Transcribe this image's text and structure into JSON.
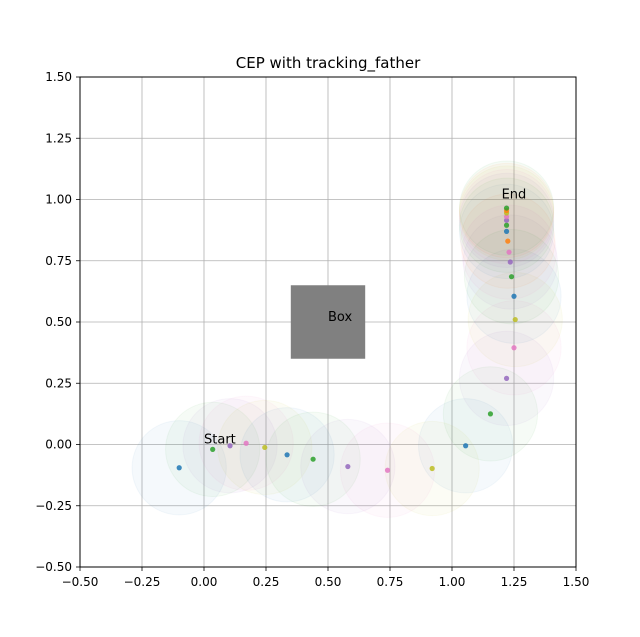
{
  "chart_data": {
    "type": "scatter",
    "title": "CEP with tracking_father",
    "xlabel": "",
    "ylabel": "",
    "xlim": [
      -0.5,
      1.5
    ],
    "ylim": [
      -0.5,
      1.5
    ],
    "grid": true,
    "x_ticks": [
      -0.5,
      -0.25,
      0.0,
      0.25,
      0.5,
      0.75,
      1.0,
      1.25,
      1.5
    ],
    "y_ticks": [
      -0.5,
      -0.25,
      0.0,
      0.25,
      0.5,
      0.75,
      1.0,
      1.25,
      1.5
    ],
    "x_tick_labels": [
      "−0.50",
      "−0.25",
      "0.00",
      "0.25",
      "0.50",
      "0.75",
      "1.00",
      "1.25",
      "1.50"
    ],
    "y_tick_labels": [
      "−0.50",
      "−0.25",
      "0.00",
      "0.25",
      "0.50",
      "0.75",
      "1.00",
      "1.25",
      "1.50"
    ],
    "cep_radius": 0.19,
    "box": {
      "x0": 0.35,
      "y0": 0.35,
      "x1": 0.65,
      "y1": 0.65,
      "color": "#808080"
    },
    "annotations": [
      {
        "text": "Start",
        "x": 0.0,
        "y": 0.0
      },
      {
        "text": "Box",
        "x": 0.5,
        "y": 0.5
      },
      {
        "text": "End",
        "x": 1.2,
        "y": 1.0
      }
    ],
    "points": [
      {
        "x": -0.1,
        "y": -0.095,
        "color": "#1f77b4"
      },
      {
        "x": 0.035,
        "y": -0.02,
        "color": "#2ca02c"
      },
      {
        "x": 0.105,
        "y": -0.005,
        "color": "#9467bd"
      },
      {
        "x": 0.17,
        "y": 0.005,
        "color": "#e377c2"
      },
      {
        "x": 0.245,
        "y": -0.012,
        "color": "#bcbd22"
      },
      {
        "x": 0.335,
        "y": -0.042,
        "color": "#1f77b4"
      },
      {
        "x": 0.44,
        "y": -0.06,
        "color": "#2ca02c"
      },
      {
        "x": 0.58,
        "y": -0.09,
        "color": "#9467bd"
      },
      {
        "x": 0.74,
        "y": -0.105,
        "color": "#e377c2"
      },
      {
        "x": 0.92,
        "y": -0.098,
        "color": "#bcbd22"
      },
      {
        "x": 1.055,
        "y": -0.005,
        "color": "#1f77b4"
      },
      {
        "x": 1.155,
        "y": 0.125,
        "color": "#2ca02c"
      },
      {
        "x": 1.22,
        "y": 0.27,
        "color": "#9467bd"
      },
      {
        "x": 1.25,
        "y": 0.395,
        "color": "#e377c2"
      },
      {
        "x": 1.255,
        "y": 0.51,
        "color": "#bcbd22"
      },
      {
        "x": 1.25,
        "y": 0.605,
        "color": "#1f77b4"
      },
      {
        "x": 1.24,
        "y": 0.685,
        "color": "#2ca02c"
      },
      {
        "x": 1.235,
        "y": 0.745,
        "color": "#9467bd"
      },
      {
        "x": 1.23,
        "y": 0.785,
        "color": "#e377c2"
      },
      {
        "x": 1.225,
        "y": 0.83,
        "color": "#ff7f0e"
      },
      {
        "x": 1.22,
        "y": 0.87,
        "color": "#1f77b4"
      },
      {
        "x": 1.22,
        "y": 0.895,
        "color": "#2ca02c"
      },
      {
        "x": 1.22,
        "y": 0.915,
        "color": "#9467bd"
      },
      {
        "x": 1.22,
        "y": 0.93,
        "color": "#e377c2"
      },
      {
        "x": 1.22,
        "y": 0.945,
        "color": "#bcbd22"
      },
      {
        "x": 1.22,
        "y": 0.955,
        "color": "#ff7f0e"
      },
      {
        "x": 1.22,
        "y": 0.965,
        "color": "#2ca02c"
      }
    ]
  }
}
